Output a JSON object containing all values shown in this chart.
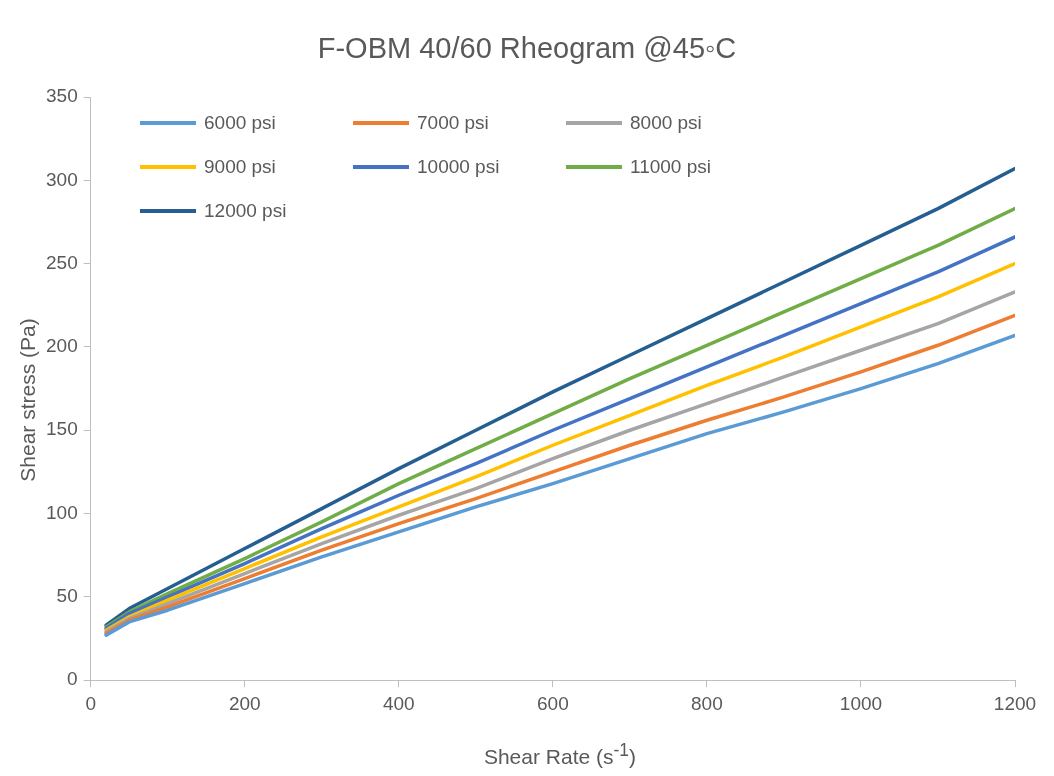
{
  "chart_data": {
    "type": "line",
    "title": "F-OBM 40/60 Rheogram @45◦C",
    "xlabel": "Shear Rate (s$^{-1}$)",
    "ylabel": "Shear stress (Pa)",
    "x": [
      20,
      50,
      100,
      200,
      300,
      400,
      500,
      600,
      700,
      800,
      900,
      1000,
      1100,
      1200
    ],
    "xlim": [
      0,
      1200
    ],
    "xticks": [
      0,
      200,
      400,
      600,
      800,
      1000,
      1200
    ],
    "ylim": [
      0,
      350
    ],
    "yticks": [
      0,
      50,
      100,
      150,
      200,
      250,
      300,
      350
    ],
    "grid": false,
    "legend": "top left",
    "marker": "none",
    "line_style": "solid",
    "series": [
      {
        "name": "6000 psi",
        "color": "#5b9bd5",
        "values": [
          27,
          35,
          42,
          58,
          74,
          89,
          104,
          118,
          133,
          148,
          161,
          175,
          190,
          207
        ]
      },
      {
        "name": "7000 psi",
        "color": "#ed7d31",
        "values": [
          28,
          36,
          44,
          61,
          78,
          94,
          109,
          125,
          141,
          156,
          170,
          185,
          201,
          219
        ]
      },
      {
        "name": "8000 psi",
        "color": "#a5a5a5",
        "values": [
          29,
          37,
          46,
          64,
          82,
          99,
          115,
          133,
          150,
          166,
          182,
          198,
          214,
          233
        ]
      },
      {
        "name": "9000 psi",
        "color": "#ffc000",
        "values": [
          30,
          38,
          48,
          67,
          86,
          104,
          122,
          141,
          159,
          177,
          194,
          212,
          230,
          250
        ]
      },
      {
        "name": "10000 psi",
        "color": "#4472c4",
        "values": [
          31,
          40,
          50,
          70,
          91,
          111,
          130,
          150,
          169,
          188,
          207,
          226,
          245,
          266
        ]
      },
      {
        "name": "11000 psi",
        "color": "#70ad47",
        "values": [
          32,
          41,
          52,
          73,
          95,
          118,
          139,
          160,
          181,
          201,
          221,
          241,
          261,
          283
        ]
      },
      {
        "name": "12000 psi",
        "color": "#255e91",
        "values": [
          33,
          43,
          55,
          79,
          103,
          127,
          150,
          173,
          195,
          217,
          239,
          261,
          283,
          307
        ]
      }
    ]
  }
}
